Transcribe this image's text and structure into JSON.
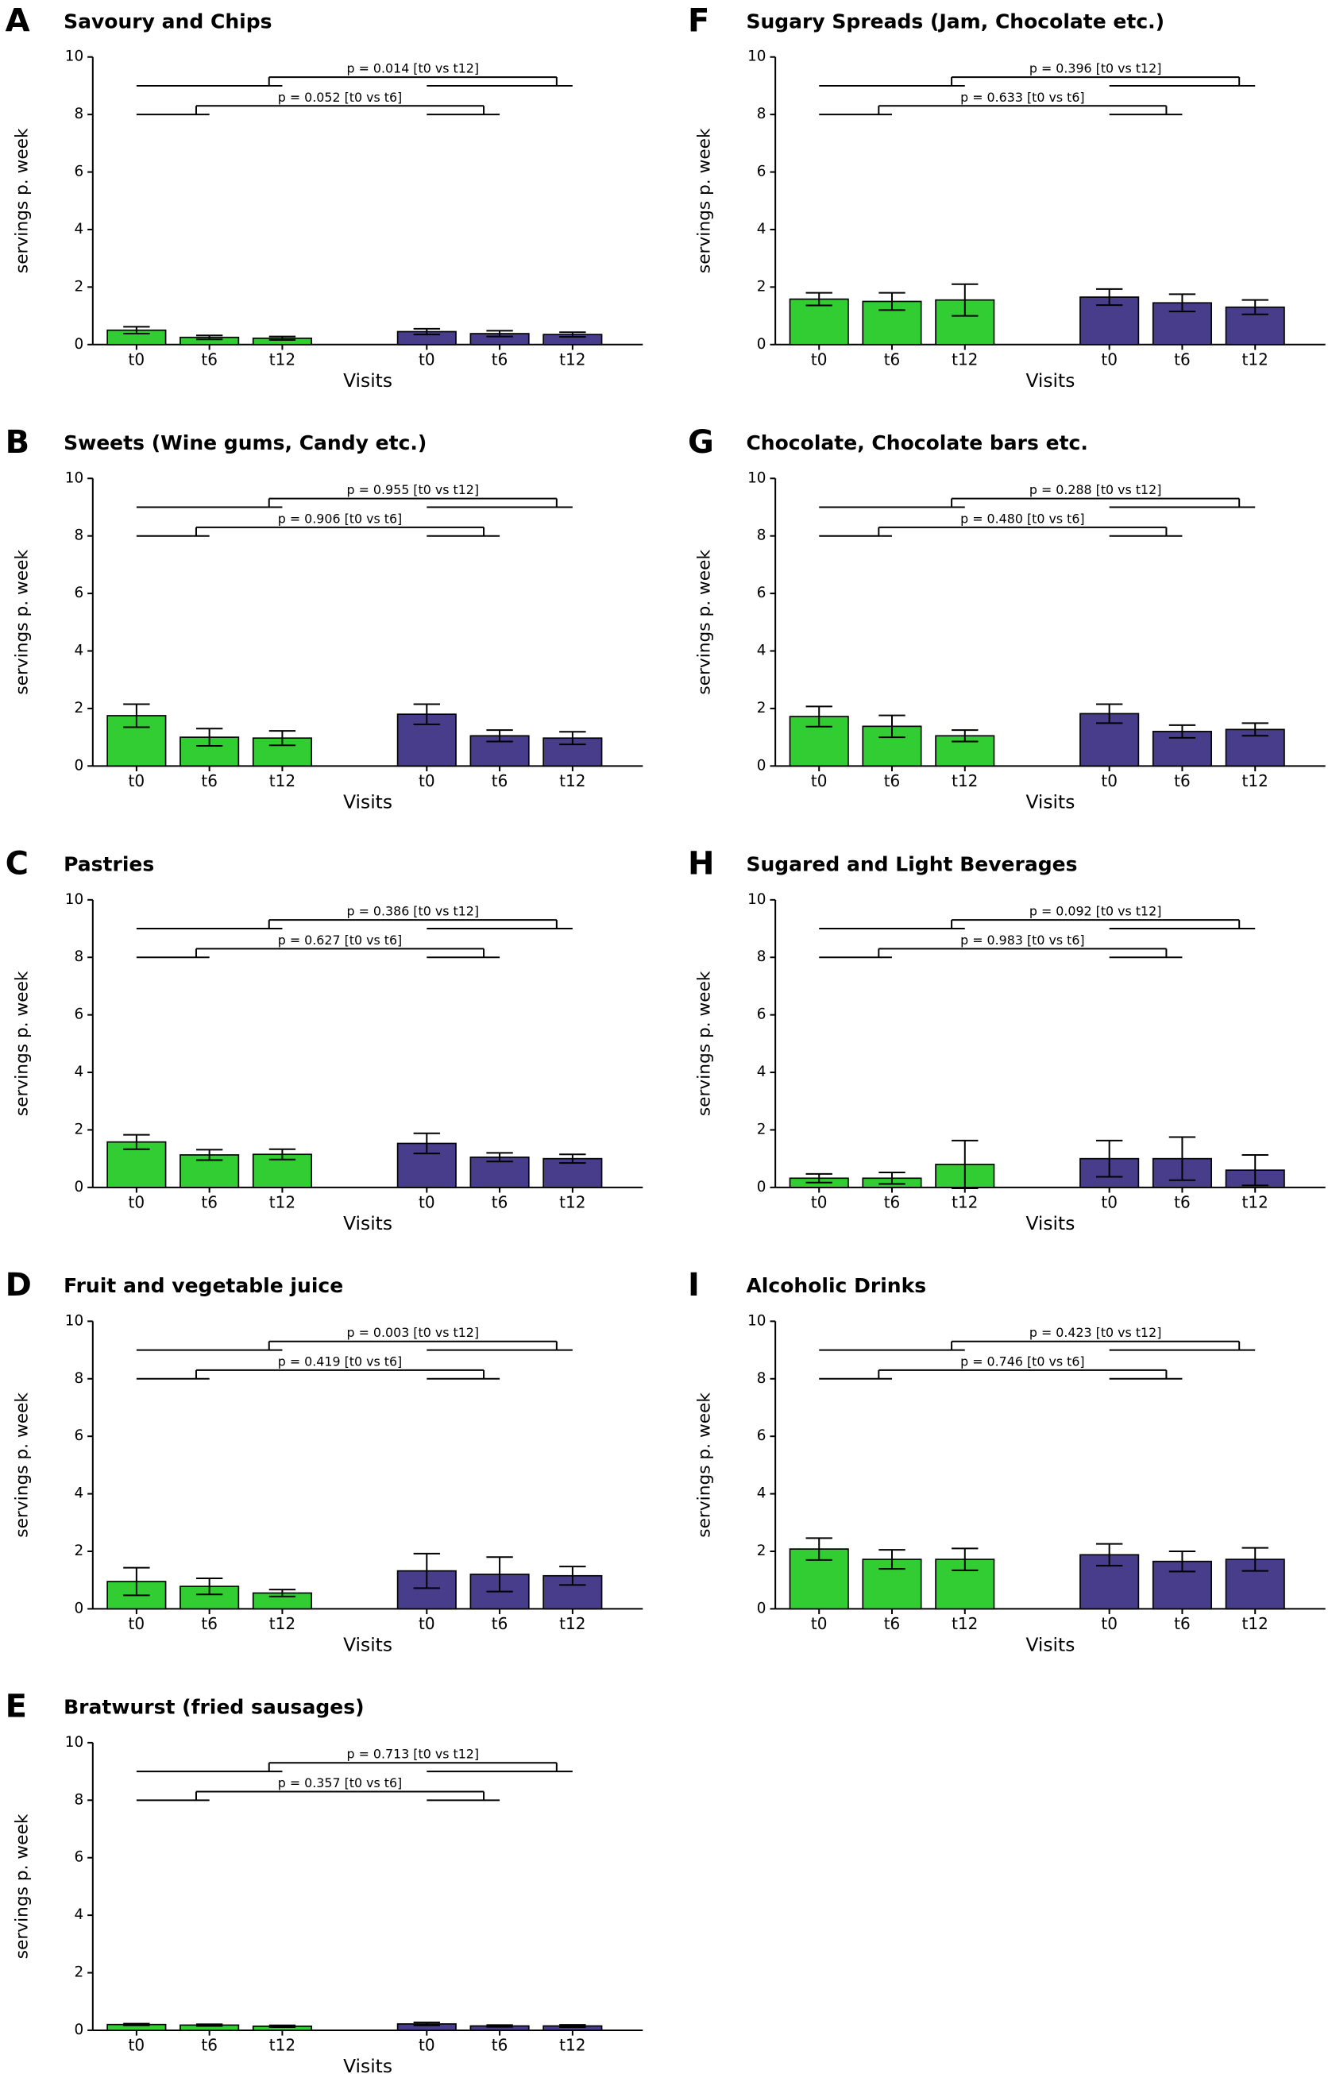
{
  "chart_data": [
    {
      "type": "bar",
      "panel": "A",
      "title": "Savoury and Chips",
      "categories": [
        "t0",
        "t6",
        "t12"
      ],
      "series": [
        {
          "color": "#32cd32",
          "values": [
            0.5,
            0.25,
            0.22
          ],
          "errors": [
            0.12,
            0.07,
            0.06
          ]
        },
        {
          "color": "#483d8b",
          "values": [
            0.45,
            0.38,
            0.35
          ],
          "errors": [
            0.1,
            0.1,
            0.08
          ]
        }
      ],
      "xlabel": "Visits",
      "ylabel": "servings p. week",
      "ylim": [
        0,
        10
      ],
      "yticks": [
        0,
        2,
        4,
        6,
        8,
        10
      ],
      "annotations": [
        "p = 0.014 [t0 vs t12]",
        "p = 0.052 [t0 vs t6]"
      ]
    },
    {
      "type": "bar",
      "panel": "B",
      "title": "Sweets (Wine gums, Candy etc.)",
      "categories": [
        "t0",
        "t6",
        "t12"
      ],
      "series": [
        {
          "color": "#32cd32",
          "values": [
            1.75,
            1.0,
            0.97
          ],
          "errors": [
            0.4,
            0.3,
            0.25
          ]
        },
        {
          "color": "#483d8b",
          "values": [
            1.8,
            1.05,
            0.97
          ],
          "errors": [
            0.35,
            0.2,
            0.22
          ]
        }
      ],
      "xlabel": "Visits",
      "ylabel": "servings p. week",
      "ylim": [
        0,
        10
      ],
      "yticks": [
        0,
        2,
        4,
        6,
        8,
        10
      ],
      "annotations": [
        "p = 0.955 [t0 vs t12]",
        "p = 0.906 [t0 vs t6]"
      ]
    },
    {
      "type": "bar",
      "panel": "C",
      "title": "Pastries",
      "categories": [
        "t0",
        "t6",
        "t12"
      ],
      "series": [
        {
          "color": "#32cd32",
          "values": [
            1.58,
            1.13,
            1.15
          ],
          "errors": [
            0.25,
            0.18,
            0.18
          ]
        },
        {
          "color": "#483d8b",
          "values": [
            1.53,
            1.05,
            1.0
          ],
          "errors": [
            0.35,
            0.15,
            0.15
          ]
        }
      ],
      "xlabel": "Visits",
      "ylabel": "servings p. week",
      "ylim": [
        0,
        10
      ],
      "yticks": [
        0,
        2,
        4,
        6,
        8,
        10
      ],
      "annotations": [
        "p = 0.386 [t0 vs t12]",
        "p = 0.627 [t0 vs t6]"
      ]
    },
    {
      "type": "bar",
      "panel": "D",
      "title": "Fruit and vegetable juice",
      "categories": [
        "t0",
        "t6",
        "t12"
      ],
      "series": [
        {
          "color": "#32cd32",
          "values": [
            0.95,
            0.78,
            0.55
          ],
          "errors": [
            0.48,
            0.28,
            0.12
          ]
        },
        {
          "color": "#483d8b",
          "values": [
            1.32,
            1.2,
            1.15
          ],
          "errors": [
            0.6,
            0.6,
            0.32
          ]
        }
      ],
      "xlabel": "Visits",
      "ylabel": "servings p. week",
      "ylim": [
        0,
        10
      ],
      "yticks": [
        0,
        2,
        4,
        6,
        8,
        10
      ],
      "annotations": [
        "p = 0.003 [t0 vs t12]",
        "p = 0.419 [t0 vs t6]"
      ]
    },
    {
      "type": "bar",
      "panel": "E",
      "title": "Bratwurst (fried sausages)",
      "categories": [
        "t0",
        "t6",
        "t12"
      ],
      "series": [
        {
          "color": "#32cd32",
          "values": [
            0.2,
            0.18,
            0.14
          ],
          "errors": [
            0.03,
            0.03,
            0.03
          ]
        },
        {
          "color": "#483d8b",
          "values": [
            0.22,
            0.15,
            0.15
          ],
          "errors": [
            0.05,
            0.03,
            0.04
          ]
        }
      ],
      "xlabel": "Visits",
      "ylabel": "servings p. week",
      "ylim": [
        0,
        10
      ],
      "yticks": [
        0,
        2,
        4,
        6,
        8,
        10
      ],
      "annotations": [
        "p = 0.713 [t0 vs t12]",
        "p = 0.357 [t0 vs t6]"
      ]
    },
    {
      "type": "bar",
      "panel": "F",
      "title": "Sugary Spreads (Jam, Chocolate etc.)",
      "categories": [
        "t0",
        "t6",
        "t12"
      ],
      "series": [
        {
          "color": "#32cd32",
          "values": [
            1.58,
            1.5,
            1.55
          ],
          "errors": [
            0.22,
            0.3,
            0.55
          ]
        },
        {
          "color": "#483d8b",
          "values": [
            1.65,
            1.45,
            1.3
          ],
          "errors": [
            0.28,
            0.3,
            0.25
          ]
        }
      ],
      "xlabel": "Visits",
      "ylabel": "servings p. week",
      "ylim": [
        0,
        10
      ],
      "yticks": [
        0,
        2,
        4,
        6,
        8,
        10
      ],
      "annotations": [
        "p = 0.396 [t0 vs t12]",
        "p = 0.633 [t0 vs t6]"
      ]
    },
    {
      "type": "bar",
      "panel": "G",
      "title": "Chocolate, Chocolate bars etc.",
      "categories": [
        "t0",
        "t6",
        "t12"
      ],
      "series": [
        {
          "color": "#32cd32",
          "values": [
            1.72,
            1.38,
            1.05
          ],
          "errors": [
            0.35,
            0.38,
            0.2
          ]
        },
        {
          "color": "#483d8b",
          "values": [
            1.82,
            1.2,
            1.27
          ],
          "errors": [
            0.33,
            0.22,
            0.22
          ]
        }
      ],
      "xlabel": "Visits",
      "ylabel": "servings p. week",
      "ylim": [
        0,
        10
      ],
      "yticks": [
        0,
        2,
        4,
        6,
        8,
        10
      ],
      "annotations": [
        "p = 0.288 [t0 vs t12]",
        "p = 0.480 [t0 vs t6]"
      ]
    },
    {
      "type": "bar",
      "panel": "H",
      "title": "Sugared and Light Beverages",
      "categories": [
        "t0",
        "t6",
        "t12"
      ],
      "series": [
        {
          "color": "#32cd32",
          "values": [
            0.32,
            0.32,
            0.8
          ],
          "errors": [
            0.15,
            0.2,
            0.83
          ]
        },
        {
          "color": "#483d8b",
          "values": [
            1.0,
            1.0,
            0.6
          ],
          "errors": [
            0.63,
            0.75,
            0.53
          ]
        }
      ],
      "xlabel": "Visits",
      "ylabel": "servings p. week",
      "ylim": [
        0,
        10
      ],
      "yticks": [
        0,
        2,
        4,
        6,
        8,
        10
      ],
      "annotations": [
        "p = 0.092 [t0 vs t12]",
        "p = 0.983 [t0 vs t6]"
      ]
    },
    {
      "type": "bar",
      "panel": "I",
      "title": "Alcoholic Drinks",
      "categories": [
        "t0",
        "t6",
        "t12"
      ],
      "series": [
        {
          "color": "#32cd32",
          "values": [
            2.08,
            1.72,
            1.72
          ],
          "errors": [
            0.38,
            0.33,
            0.38
          ]
        },
        {
          "color": "#483d8b",
          "values": [
            1.88,
            1.65,
            1.72
          ],
          "errors": [
            0.38,
            0.35,
            0.4
          ]
        }
      ],
      "xlabel": "Visits",
      "ylabel": "servings p. week",
      "ylim": [
        0,
        10
      ],
      "yticks": [
        0,
        2,
        4,
        6,
        8,
        10
      ],
      "annotations": [
        "p = 0.423 [t0 vs t12]",
        "p = 0.746 [t0 vs t6]"
      ]
    }
  ]
}
